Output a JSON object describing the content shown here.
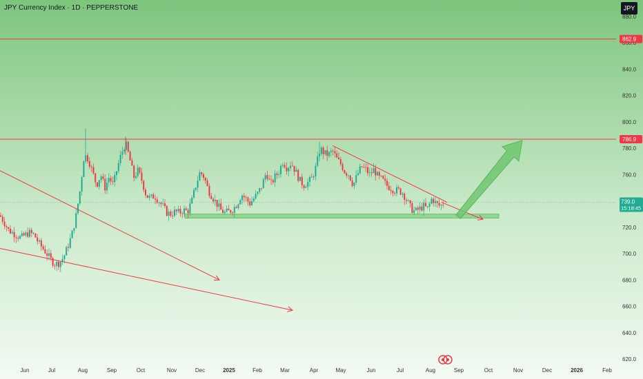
{
  "header": {
    "title": "JPY Currency Index · 1D · PEPPERSTONE",
    "symbol_badge": "JPY"
  },
  "colors": {
    "background_top": "#7dc57d",
    "background_bottom": "#f3faf3",
    "up_candle": "#22ab94",
    "down_candle": "#f23645",
    "level_line": "#f23645",
    "support_zone": "#8bd48b",
    "arrow_fill": "#6cc46c",
    "last_price_badge": "#22ab94"
  },
  "chart_data": {
    "type": "candlestick",
    "ylim": [
      617,
      885
    ],
    "yticks": [
      620,
      640,
      660,
      680,
      700,
      720,
      740,
      760,
      780,
      800,
      820,
      840,
      860,
      880
    ],
    "xticks": [
      "Jun",
      "Jul",
      "Aug",
      "Sep",
      "Oct",
      "Nov",
      "Dec",
      "2025",
      "Feb",
      "Mar",
      "Apr",
      "May",
      "Jun",
      "Jul",
      "Aug",
      "Sep",
      "Oct",
      "Nov",
      "Dec",
      "2026",
      "Feb"
    ],
    "horizontal_levels": [
      {
        "label": "862.9",
        "value": 862.9
      },
      {
        "label": "786.9",
        "value": 786.9
      }
    ],
    "last_price": {
      "price": "739.0",
      "countdown": "15:18:45",
      "value": 739
    },
    "support_zone": {
      "low": 727,
      "high": 730
    },
    "close_path": [
      {
        "t": 0,
        "v": 729
      },
      {
        "t": 6,
        "v": 724
      },
      {
        "t": 12,
        "v": 718
      },
      {
        "t": 18,
        "v": 716
      },
      {
        "t": 24,
        "v": 714
      },
      {
        "t": 30,
        "v": 712
      },
      {
        "t": 36,
        "v": 714
      },
      {
        "t": 42,
        "v": 716
      },
      {
        "t": 50,
        "v": 714
      },
      {
        "t": 56,
        "v": 708
      },
      {
        "t": 62,
        "v": 704
      },
      {
        "t": 68,
        "v": 700
      },
      {
        "t": 74,
        "v": 695
      },
      {
        "t": 80,
        "v": 692
      },
      {
        "t": 86,
        "v": 693
      },
      {
        "t": 92,
        "v": 697
      },
      {
        "t": 98,
        "v": 705
      },
      {
        "t": 104,
        "v": 714
      },
      {
        "t": 110,
        "v": 728
      },
      {
        "t": 116,
        "v": 748
      },
      {
        "t": 122,
        "v": 775
      },
      {
        "t": 128,
        "v": 772
      },
      {
        "t": 134,
        "v": 762
      },
      {
        "t": 140,
        "v": 752
      },
      {
        "t": 146,
        "v": 760
      },
      {
        "t": 152,
        "v": 750
      },
      {
        "t": 158,
        "v": 758
      },
      {
        "t": 164,
        "v": 752
      },
      {
        "t": 170,
        "v": 765
      },
      {
        "t": 176,
        "v": 776
      },
      {
        "t": 182,
        "v": 784
      },
      {
        "t": 188,
        "v": 772
      },
      {
        "t": 194,
        "v": 758
      },
      {
        "t": 200,
        "v": 763
      },
      {
        "t": 206,
        "v": 755
      },
      {
        "t": 212,
        "v": 744
      },
      {
        "t": 218,
        "v": 742
      },
      {
        "t": 224,
        "v": 744
      },
      {
        "t": 230,
        "v": 740
      },
      {
        "t": 236,
        "v": 736
      },
      {
        "t": 242,
        "v": 731
      },
      {
        "t": 248,
        "v": 730
      },
      {
        "t": 254,
        "v": 732
      },
      {
        "t": 260,
        "v": 731
      },
      {
        "t": 266,
        "v": 733
      },
      {
        "t": 272,
        "v": 732
      },
      {
        "t": 278,
        "v": 740
      },
      {
        "t": 284,
        "v": 752
      },
      {
        "t": 290,
        "v": 762
      },
      {
        "t": 296,
        "v": 758
      },
      {
        "t": 302,
        "v": 748
      },
      {
        "t": 308,
        "v": 743
      },
      {
        "t": 314,
        "v": 738
      },
      {
        "t": 320,
        "v": 733
      },
      {
        "t": 326,
        "v": 731
      },
      {
        "t": 332,
        "v": 732
      },
      {
        "t": 338,
        "v": 734
      },
      {
        "t": 344,
        "v": 738
      },
      {
        "t": 350,
        "v": 745
      },
      {
        "t": 356,
        "v": 742
      },
      {
        "t": 362,
        "v": 738
      },
      {
        "t": 368,
        "v": 742
      },
      {
        "t": 374,
        "v": 746
      },
      {
        "t": 380,
        "v": 752
      },
      {
        "t": 386,
        "v": 762
      },
      {
        "t": 392,
        "v": 752
      },
      {
        "t": 398,
        "v": 758
      },
      {
        "t": 404,
        "v": 762
      },
      {
        "t": 410,
        "v": 770
      },
      {
        "t": 416,
        "v": 765
      },
      {
        "t": 422,
        "v": 769
      },
      {
        "t": 428,
        "v": 763
      },
      {
        "t": 434,
        "v": 756
      },
      {
        "t": 440,
        "v": 752
      },
      {
        "t": 446,
        "v": 754
      },
      {
        "t": 452,
        "v": 757
      },
      {
        "t": 458,
        "v": 766
      },
      {
        "t": 464,
        "v": 780
      },
      {
        "t": 470,
        "v": 776
      },
      {
        "t": 476,
        "v": 775
      },
      {
        "t": 482,
        "v": 778
      },
      {
        "t": 488,
        "v": 772
      },
      {
        "t": 494,
        "v": 768
      },
      {
        "t": 500,
        "v": 762
      },
      {
        "t": 506,
        "v": 760
      },
      {
        "t": 512,
        "v": 752
      },
      {
        "t": 518,
        "v": 760
      },
      {
        "t": 524,
        "v": 766
      },
      {
        "t": 530,
        "v": 764
      },
      {
        "t": 536,
        "v": 760
      },
      {
        "t": 542,
        "v": 764
      },
      {
        "t": 548,
        "v": 758
      },
      {
        "t": 554,
        "v": 756
      },
      {
        "t": 560,
        "v": 752
      },
      {
        "t": 566,
        "v": 750
      },
      {
        "t": 572,
        "v": 748
      },
      {
        "t": 578,
        "v": 748
      },
      {
        "t": 584,
        "v": 746
      },
      {
        "t": 590,
        "v": 740
      },
      {
        "t": 596,
        "v": 734
      },
      {
        "t": 602,
        "v": 732
      },
      {
        "t": 608,
        "v": 734
      },
      {
        "t": 614,
        "v": 736
      },
      {
        "t": 620,
        "v": 734
      },
      {
        "t": 626,
        "v": 742
      },
      {
        "t": 632,
        "v": 738
      },
      {
        "t": 638,
        "v": 736
      },
      {
        "t": 644,
        "v": 739
      }
    ]
  },
  "annotations": {
    "resistance_trendline": [
      [
        482,
        782
      ],
      [
        648,
        739
      ]
    ],
    "long_trendline_1": [
      [
        0,
        763
      ],
      [
        318,
        680
      ]
    ],
    "long_trendline_2": [
      [
        0,
        704
      ],
      [
        424,
        657
      ]
    ],
    "triangle_arrow_tip": [
      [
        640,
        739
      ],
      [
        700,
        726
      ]
    ],
    "projection_arrow": {
      "from": [
        662,
        729
      ],
      "to": [
        757,
        786
      ]
    }
  }
}
